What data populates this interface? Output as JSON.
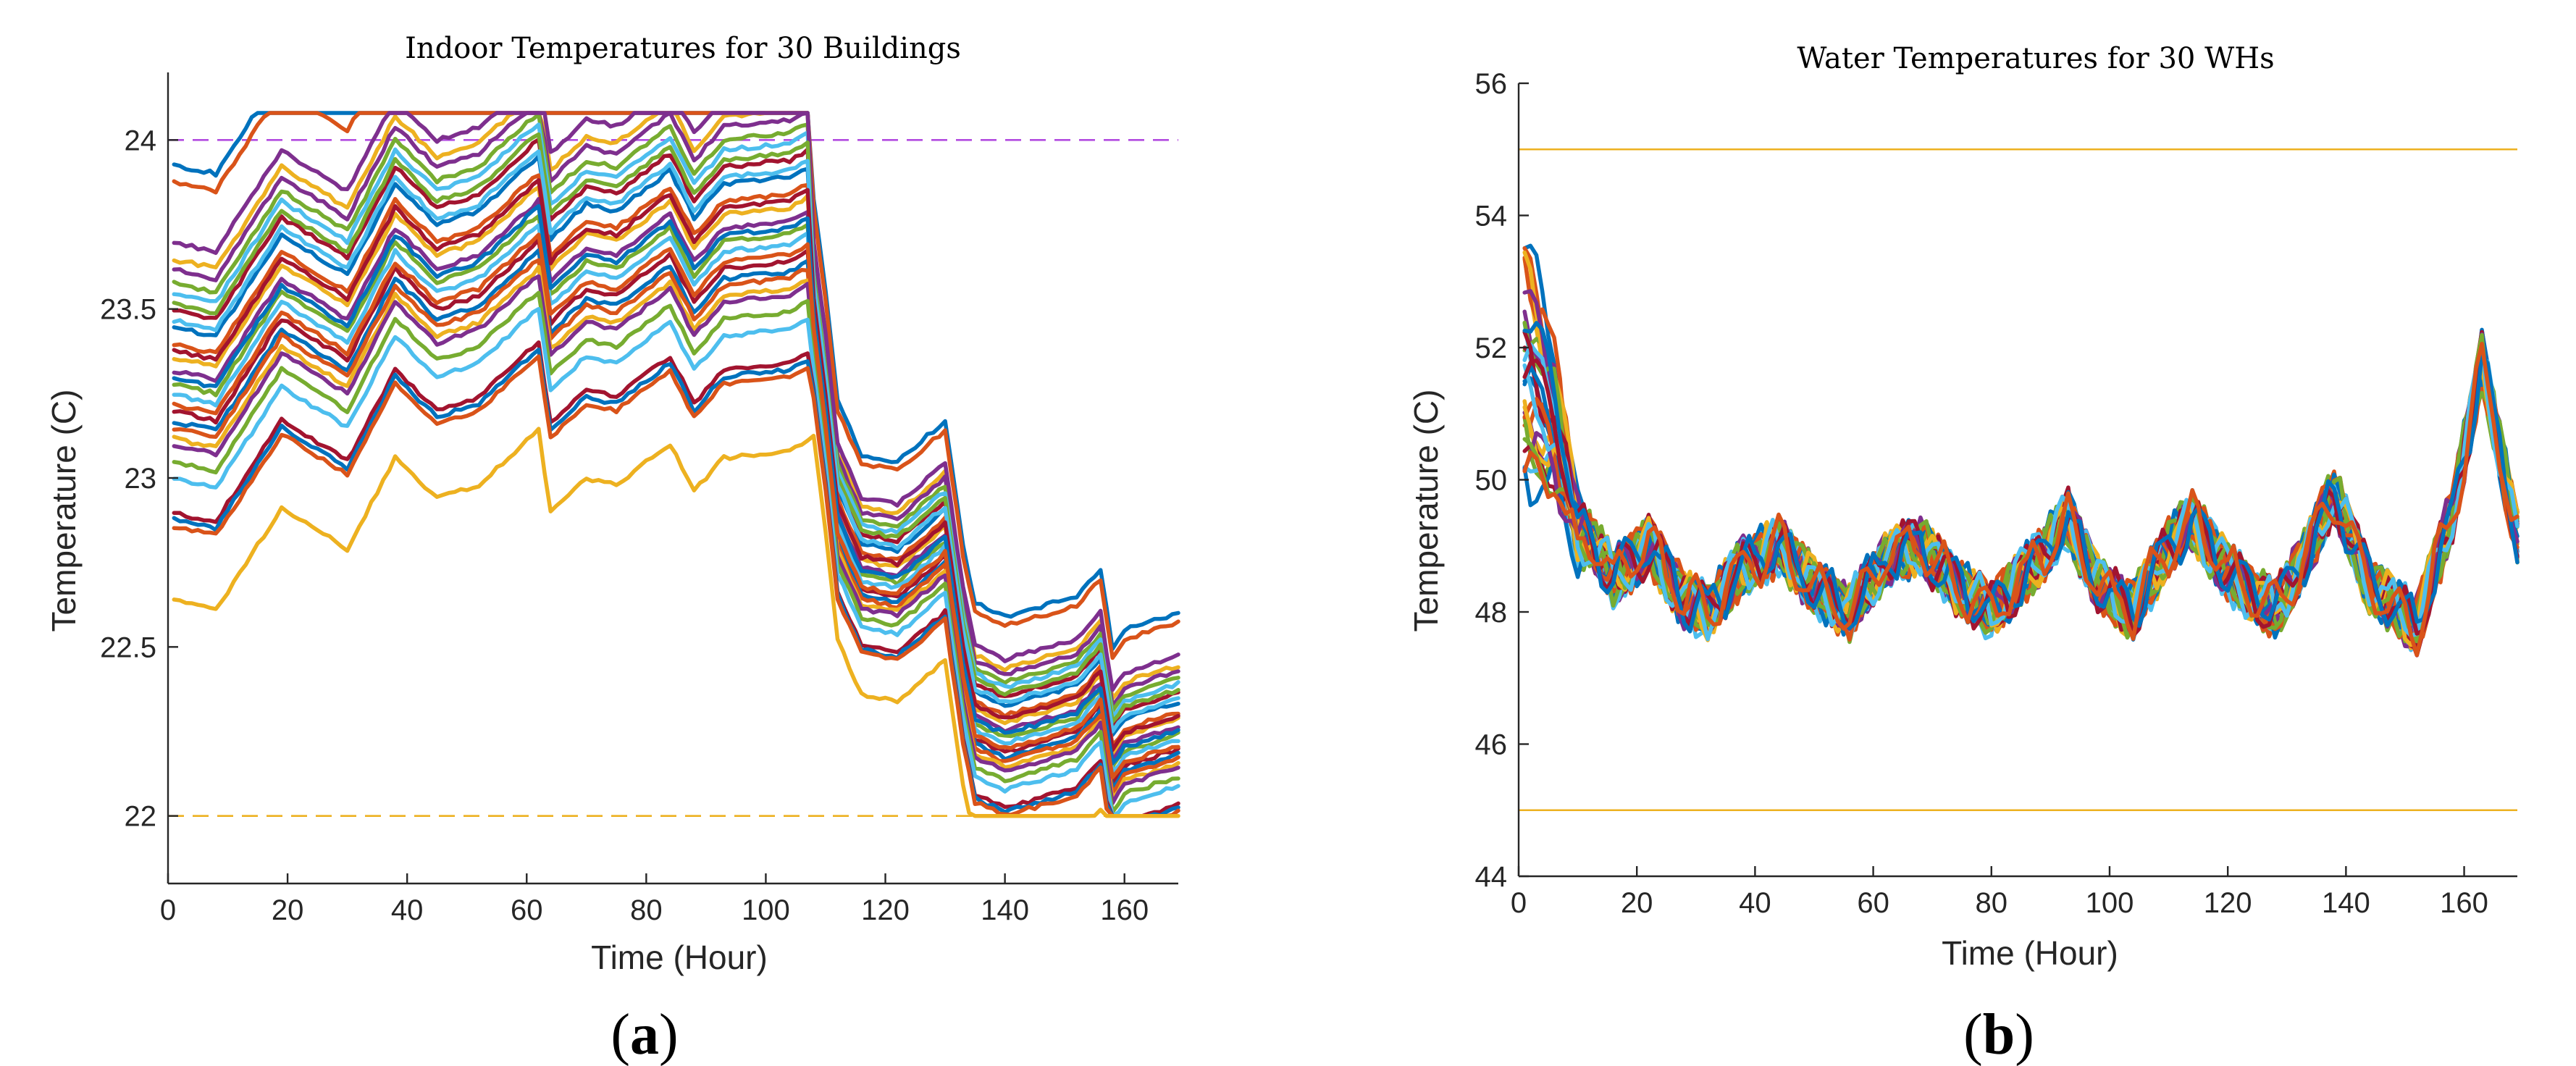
{
  "palette": [
    "#0072BD",
    "#D95319",
    "#EDB120",
    "#7E2F8E",
    "#77AC30",
    "#4DBEEE",
    "#A2142F"
  ],
  "figure_captions": [
    {
      "open": "(",
      "letter": "a",
      "close": ")"
    },
    {
      "open": "(",
      "letter": "b",
      "close": ")"
    }
  ],
  "chart_data": [
    {
      "type": "line",
      "title": "Indoor Temperatures for 30 Buildings",
      "xlabel": "Time (Hour)",
      "ylabel": "Temperature (C)",
      "xlim": [
        0,
        169
      ],
      "ylim": [
        21.8,
        24.2
      ],
      "xticks": [
        0,
        20,
        40,
        60,
        80,
        100,
        120,
        140,
        160
      ],
      "yticks": [
        22,
        22.5,
        23,
        23.5,
        24
      ],
      "ytick_labels": [
        "22",
        "22.5",
        "23",
        "23.5",
        "24"
      ],
      "grid": false,
      "legend": "none",
      "reference_lines": [
        {
          "y": 24,
          "style": "dashed",
          "color": "#B24BE0"
        },
        {
          "y": 22,
          "style": "dashed",
          "color": "#EDB120"
        }
      ],
      "series_count": 30,
      "start_values": [
        23.93,
        23.88,
        23.65,
        23.62,
        23.58,
        23.55,
        23.5,
        23.45,
        23.4,
        23.36,
        23.32,
        23.28,
        23.25,
        23.2,
        23.17,
        23.15,
        23.12,
        23.1,
        23.05,
        23.0,
        22.9,
        22.88,
        22.86,
        22.64,
        23.7,
        23.52,
        23.47,
        23.38,
        23.3,
        23.22
      ],
      "profile": {
        "x": [
          0,
          8,
          19,
          30,
          38,
          45,
          52,
          60,
          62,
          64,
          70,
          75,
          84,
          88,
          93,
          104,
          108,
          110,
          112,
          116,
          122,
          130,
          133,
          135,
          140,
          146,
          152,
          156,
          158,
          160,
          169
        ],
        "offset": [
          0,
          -0.03,
          0.27,
          0.15,
          0.42,
          0.3,
          0.34,
          0.47,
          0.5,
          0.26,
          0.36,
          0.34,
          0.46,
          0.32,
          0.42,
          0.44,
          0.48,
          0.2,
          -0.12,
          -0.28,
          -0.3,
          -0.18,
          -0.55,
          -0.72,
          -0.76,
          -0.73,
          -0.7,
          -0.62,
          -0.85,
          -0.8,
          -0.75
        ]
      }
    },
    {
      "type": "line",
      "title": "Water Temperatures for 30 WHs",
      "xlabel": "Time (Hour)",
      "ylabel": "Temperature (C)",
      "xlim": [
        0,
        169
      ],
      "ylim": [
        44,
        56
      ],
      "xticks": [
        0,
        20,
        40,
        60,
        80,
        100,
        120,
        140,
        160
      ],
      "yticks": [
        44,
        46,
        48,
        50,
        52,
        54,
        56
      ],
      "ytick_labels": [
        "44",
        "46",
        "48",
        "50",
        "52",
        "54",
        "56"
      ],
      "grid": false,
      "legend": "none",
      "reference_lines": [
        {
          "y": 55,
          "style": "solid",
          "color": "#EDB120"
        },
        {
          "y": 45,
          "style": "solid",
          "color": "#EDB120"
        }
      ],
      "series_count": 30,
      "start_values": [
        54.0,
        53.6,
        53.2,
        52.8,
        52.5,
        52.2,
        51.9,
        51.6,
        51.4,
        51.1,
        50.9,
        50.6,
        50.4,
        50.2,
        50.0,
        53.8,
        53.4,
        53.0,
        52.6,
        52.3,
        52.0,
        51.7,
        51.2,
        50.8,
        50.5,
        50.3,
        51.5,
        52.1,
        52.9,
        50.1
      ],
      "profile": {
        "x": [
          0,
          6,
          10,
          16,
          22,
          28,
          32,
          38,
          44,
          50,
          56,
          62,
          68,
          74,
          80,
          86,
          93,
          98,
          104,
          110,
          114,
          120,
          128,
          134,
          138,
          144,
          152,
          158,
          163,
          169
        ],
        "y": [
          0,
          -2.0,
          -4.5,
          -5.5,
          -5.0,
          -5.8,
          -6.0,
          -5.3,
          -5.0,
          -5.6,
          -6.0,
          -5.2,
          -5.0,
          -5.6,
          -6.0,
          -5.4,
          -4.6,
          -5.6,
          -6.0,
          -5.0,
          -4.6,
          -5.4,
          -6.0,
          -5.0,
          -4.2,
          -5.6,
          -6.2,
          -4.5,
          -2.2,
          -4.9
        ]
      }
    }
  ]
}
